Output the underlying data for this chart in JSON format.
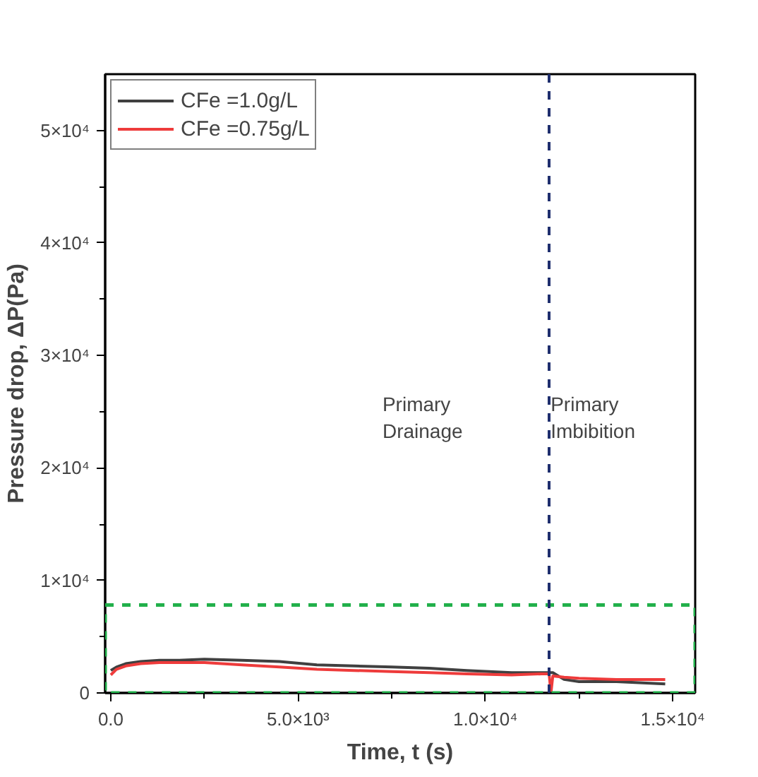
{
  "chart_data": {
    "type": "line",
    "xlabel": "Time, t (s)",
    "ylabel": "Pressure drop, ΔP(Pa)",
    "x": [
      0,
      150,
      400,
      800,
      1300,
      1800,
      2500,
      3500,
      4500,
      5500,
      6500,
      7500,
      8500,
      9500,
      10700,
      11500,
      11700,
      11750,
      11800,
      12100,
      12500,
      13500,
      14800
    ],
    "series": [
      {
        "name": "CFe =1.0g/L",
        "color": "#404040",
        "values": [
          2000,
          2300,
          2600,
          2800,
          2900,
          2900,
          3000,
          2900,
          2800,
          2500,
          2400,
          2300,
          2200,
          2000,
          1800,
          1800,
          1800,
          1800,
          1800,
          1200,
          1000,
          1000,
          800
        ]
      },
      {
        "name": "CFe =0.75g/L",
        "color": "#ee3b3b",
        "values": [
          1600,
          2100,
          2400,
          2600,
          2700,
          2700,
          2700,
          2500,
          2300,
          2100,
          2000,
          1900,
          1800,
          1700,
          1600,
          1700,
          1700,
          0,
          1500,
          1400,
          1300,
          1200,
          1200
        ]
      }
    ],
    "xlim": [
      -150,
      15600
    ],
    "ylim": [
      0,
      55000
    ],
    "xticks": [
      {
        "value": 0,
        "label": "0.0"
      },
      {
        "value": 5000,
        "label": "5.0×10³"
      },
      {
        "value": 10000,
        "label": "1.0×10⁴"
      },
      {
        "value": 15000,
        "label": "1.5×10⁴"
      },
      {
        "value": 2500,
        "label": null
      },
      {
        "value": 7500,
        "label": null
      },
      {
        "value": 12500,
        "label": null
      }
    ],
    "yticks": [
      0,
      {
        "value": 10000,
        "label": "1×10⁴"
      },
      {
        "value": 20000,
        "label": "2×10⁴"
      },
      {
        "value": 30000,
        "label": "3×10⁴"
      },
      {
        "value": 40000,
        "label": "4×10⁴"
      },
      {
        "value": 50000,
        "label": "5×10⁴"
      },
      {
        "value": 5000,
        "label": null
      },
      {
        "value": 15000,
        "label": null
      },
      {
        "value": 25000,
        "label": null
      },
      {
        "value": 35000,
        "label": null
      },
      {
        "value": 45000,
        "label": null
      }
    ],
    "ref_lines": [
      {
        "axis": "x",
        "value": 11700,
        "color": "#1f2f6e",
        "line_style": "dashed"
      }
    ],
    "annotations": [
      "Primary\nDrainage",
      "Primary\nImbibition"
    ],
    "grid": false,
    "legend": "top left",
    "marker": "none",
    "line_style": "solid"
  }
}
